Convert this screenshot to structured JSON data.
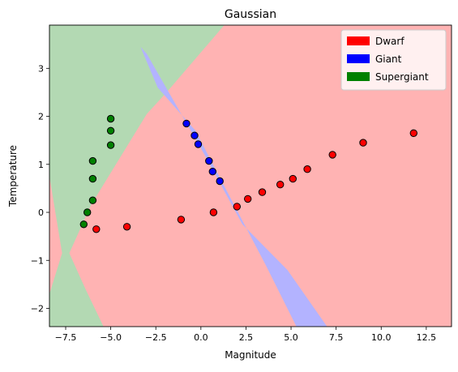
{
  "chart_data": {
    "type": "scatter",
    "title": "Gaussian",
    "xlabel": "Magnitude",
    "ylabel": "Temperature",
    "xlim": [
      -8.4,
      13.9
    ],
    "ylim": [
      -2.38,
      3.9
    ],
    "xticks": [
      -7.5,
      -5.0,
      -2.5,
      0.0,
      2.5,
      5.0,
      7.5,
      10.0,
      12.5
    ],
    "xtick_labels": [
      "−7.5",
      "−5.0",
      "−2.5",
      "0.0",
      "2.5",
      "5.0",
      "7.5",
      "10.0",
      "12.5"
    ],
    "yticks": [
      -2,
      -1,
      0,
      1,
      2,
      3
    ],
    "ytick_labels": [
      "−2",
      "−1",
      "0",
      "1",
      "2",
      "3"
    ],
    "grid": false,
    "legend_position": "top-right",
    "background_regions": [
      {
        "class": "Dwarf",
        "color": "#ffb3b3",
        "polygon": [
          [
            -8.4,
            -2.38
          ],
          [
            13.9,
            -2.38
          ],
          [
            13.9,
            3.9
          ],
          [
            -8.4,
            3.9
          ]
        ]
      },
      {
        "class": "Supergiant",
        "color": "#b3d9b3",
        "polygon": [
          [
            -8.4,
            3.9
          ],
          [
            1.3,
            3.9
          ],
          [
            -1.9,
            2.5
          ],
          [
            -3.0,
            2.05
          ],
          [
            -6.1,
            0.15
          ],
          [
            -7.3,
            -0.85
          ],
          [
            -6.4,
            -1.6
          ],
          [
            -5.4,
            -2.38
          ],
          [
            -8.4,
            -2.38
          ],
          [
            -8.4,
            -1.7
          ],
          [
            -7.7,
            -0.85
          ],
          [
            -8.4,
            0.75
          ]
        ]
      },
      {
        "class": "Giant",
        "color": "#b3b3ff",
        "polygon": [
          [
            -3.35,
            3.45
          ],
          [
            -3.0,
            3.3
          ],
          [
            0.2,
            1.2
          ],
          [
            2.3,
            -0.25
          ],
          [
            4.8,
            -1.2
          ],
          [
            7.0,
            -2.38
          ],
          [
            5.3,
            -2.38
          ],
          [
            3.6,
            -1.1
          ],
          [
            1.5,
            0.4
          ],
          [
            -0.3,
            1.7
          ],
          [
            -2.4,
            2.6
          ]
        ]
      }
    ],
    "series": [
      {
        "name": "Dwarf",
        "color": "#ff0000",
        "x": [
          -5.8,
          -4.1,
          -1.1,
          0.7,
          2.0,
          2.6,
          3.4,
          4.4,
          5.1,
          5.9,
          7.3,
          9.0,
          11.8
        ],
        "y": [
          -0.35,
          -0.3,
          -0.15,
          0.0,
          0.12,
          0.28,
          0.42,
          0.58,
          0.7,
          0.9,
          1.2,
          1.45,
          1.65
        ]
      },
      {
        "name": "Giant",
        "color": "#0000ff",
        "x": [
          -0.8,
          -0.35,
          -0.15,
          0.45,
          0.65,
          1.05
        ],
        "y": [
          1.85,
          1.6,
          1.42,
          1.07,
          0.85,
          0.65
        ]
      },
      {
        "name": "Supergiant",
        "color": "#008000",
        "x": [
          -5.0,
          -5.0,
          -5.0,
          -6.0,
          -6.0,
          -6.0,
          -6.3,
          -6.5
        ],
        "y": [
          1.95,
          1.7,
          1.4,
          1.07,
          0.7,
          0.25,
          0.0,
          -0.25
        ]
      }
    ],
    "legend": [
      {
        "label": "Dwarf",
        "color": "#ff0000"
      },
      {
        "label": "Giant",
        "color": "#0000ff"
      },
      {
        "label": "Supergiant",
        "color": "#008000"
      }
    ]
  }
}
